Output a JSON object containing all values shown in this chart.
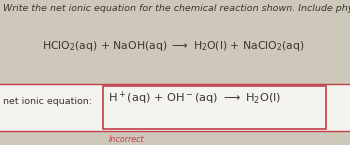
{
  "background_color": "#cec8bb",
  "instruction_text": "Write the net ionic equation for the chemical reaction shown. Include physical states.",
  "label_text": "net ionic equation:",
  "incorrect_text": "Incorrect",
  "box_color": "#f5f3ee",
  "box_border_color": "#c0404a",
  "instruction_fontsize": 6.8,
  "equation_fontsize": 7.8,
  "answer_fontsize": 8.2,
  "label_fontsize": 6.8,
  "incorrect_fontsize": 5.8,
  "incorrect_color": "#c0404a",
  "text_color": "#3a3530"
}
